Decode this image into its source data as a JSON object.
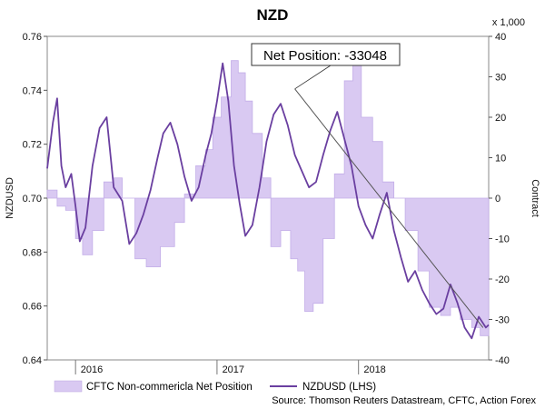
{
  "chart_data": {
    "type": "line",
    "title": "NZD",
    "y_left_label": "NZDUSD",
    "y_right_label": "Contract",
    "y_right_unit": "x 1,000",
    "y_left_range": [
      0.64,
      0.76
    ],
    "y_right_range": [
      -40,
      40
    ],
    "y_left_ticks": [
      "0.64",
      "0.66",
      "0.68",
      "0.70",
      "0.72",
      "0.74",
      "0.76"
    ],
    "y_right_ticks": [
      "-40",
      "-30",
      "-20",
      "-10",
      "0",
      "10",
      "20",
      "30",
      "40"
    ],
    "x_range": [
      2015.8,
      2018.92
    ],
    "x_ticks": [
      "2016",
      "2017",
      "2018"
    ],
    "annotation": "Net Position: -33048",
    "source": "Source: Thomson Reuters Datastream, CFTC, Action Forex",
    "colors": {
      "line": "#6a3fa0",
      "area": "#d9c9f2",
      "trend": "#555555"
    },
    "legend": [
      {
        "label": "CFTC Non-commericla Net Position",
        "type": "area"
      },
      {
        "label": "NZDUSD (LHS)",
        "type": "line"
      }
    ],
    "series": [
      {
        "name": "CFTC Non-commericla Net Position",
        "axis": "right",
        "type": "area",
        "x": [
          2015.8,
          2015.87,
          2015.93,
          2016.0,
          2016.05,
          2016.12,
          2016.2,
          2016.27,
          2016.33,
          2016.42,
          2016.5,
          2016.6,
          2016.7,
          2016.77,
          2016.85,
          2016.92,
          2016.97,
          2017.03,
          2017.1,
          2017.15,
          2017.2,
          2017.25,
          2017.32,
          2017.38,
          2017.45,
          2017.52,
          2017.57,
          2017.62,
          2017.68,
          2017.75,
          2017.83,
          2017.9,
          2017.96,
          2018.02,
          2018.1,
          2018.17,
          2018.25,
          2018.33,
          2018.42,
          2018.5,
          2018.58,
          2018.65,
          2018.72,
          2018.8,
          2018.86,
          2018.92
        ],
        "values": [
          2,
          -2,
          -3,
          -10,
          -14,
          -8,
          4,
          5,
          0,
          -15,
          -17,
          -12,
          -6,
          1,
          8,
          12,
          20,
          25,
          34,
          31,
          24,
          16,
          5,
          -12,
          -8,
          -15,
          -18,
          -28,
          -26,
          -10,
          6,
          29,
          34,
          20,
          14,
          4,
          0,
          -8,
          -18,
          -27,
          -29,
          -27,
          -30,
          -32,
          -34,
          -33
        ]
      },
      {
        "name": "NZDUSD (LHS)",
        "axis": "left",
        "type": "line",
        "x": [
          2015.8,
          2015.84,
          2015.87,
          2015.9,
          2015.93,
          2015.97,
          2016.0,
          2016.03,
          2016.07,
          2016.12,
          2016.17,
          2016.22,
          2016.27,
          2016.33,
          2016.38,
          2016.43,
          2016.48,
          2016.53,
          2016.58,
          2016.62,
          2016.67,
          2016.72,
          2016.77,
          2016.82,
          2016.87,
          2016.92,
          2016.96,
          2017.0,
          2017.04,
          2017.08,
          2017.12,
          2017.16,
          2017.2,
          2017.25,
          2017.3,
          2017.35,
          2017.4,
          2017.45,
          2017.5,
          2017.55,
          2017.6,
          2017.65,
          2017.7,
          2017.75,
          2017.8,
          2017.85,
          2017.9,
          2017.95,
          2018.0,
          2018.05,
          2018.1,
          2018.15,
          2018.2,
          2018.25,
          2018.3,
          2018.35,
          2018.4,
          2018.45,
          2018.5,
          2018.55,
          2018.6,
          2018.65,
          2018.7,
          2018.75,
          2018.8,
          2018.85,
          2018.9,
          2018.92
        ],
        "values": [
          0.711,
          0.728,
          0.737,
          0.712,
          0.704,
          0.709,
          0.697,
          0.684,
          0.689,
          0.712,
          0.726,
          0.73,
          0.704,
          0.699,
          0.683,
          0.687,
          0.694,
          0.703,
          0.715,
          0.724,
          0.728,
          0.72,
          0.708,
          0.699,
          0.704,
          0.716,
          0.724,
          0.736,
          0.75,
          0.736,
          0.712,
          0.698,
          0.686,
          0.69,
          0.704,
          0.721,
          0.731,
          0.735,
          0.727,
          0.716,
          0.71,
          0.704,
          0.706,
          0.716,
          0.725,
          0.732,
          0.722,
          0.712,
          0.697,
          0.69,
          0.685,
          0.694,
          0.702,
          0.688,
          0.678,
          0.669,
          0.673,
          0.666,
          0.661,
          0.657,
          0.659,
          0.668,
          0.661,
          0.652,
          0.648,
          0.656,
          0.652,
          0.653
        ]
      }
    ],
    "trend_line": {
      "from": [
        2017.55,
        0.7405
      ],
      "to": [
        2018.88,
        0.652
      ]
    }
  }
}
